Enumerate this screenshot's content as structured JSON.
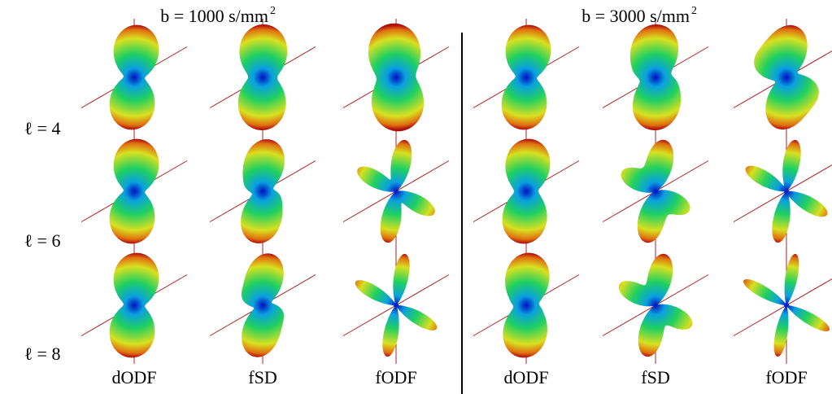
{
  "headers": [
    {
      "label": "b = 1000 s/mm",
      "superscript": "2"
    },
    {
      "label": "b = 3000 s/mm",
      "superscript": "2"
    }
  ],
  "row_labels": [
    "ℓ = 4",
    "ℓ = 6",
    "ℓ = 8"
  ],
  "column_labels": [
    "dODF",
    "fSD",
    "fODF",
    "dODF",
    "fSD",
    "fODF"
  ]
}
